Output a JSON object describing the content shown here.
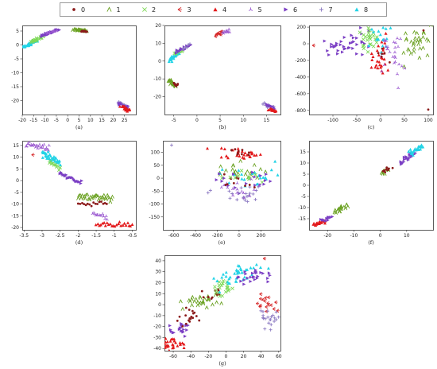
{
  "legend": {
    "entries": [
      {
        "label": "0",
        "marker": "dot",
        "color": "#8b1a1a"
      },
      {
        "label": "1",
        "marker": "caret",
        "color": "#6aa121"
      },
      {
        "label": "2",
        "marker": "x",
        "color": "#7ed957"
      },
      {
        "label": "3",
        "marker": "tri-left",
        "color": "#d62728"
      },
      {
        "label": "4",
        "marker": "triangle",
        "color": "#e31a1c"
      },
      {
        "label": "5",
        "marker": "tri-3",
        "color": "#9b59d0"
      },
      {
        "label": "6",
        "marker": "tri-right",
        "color": "#7b3fc4"
      },
      {
        "label": "7",
        "marker": "plus",
        "color": "#8e7cc3"
      },
      {
        "label": "8",
        "marker": "triangle",
        "color": "#22d3e6"
      }
    ]
  },
  "chart_data": [
    {
      "type": "scatter",
      "caption": "(a)",
      "xlim": [
        -20,
        30
      ],
      "ylim": [
        -25,
        7
      ],
      "xticks": [
        -20,
        -15,
        -10,
        -5,
        0,
        5,
        10,
        15,
        20,
        25
      ],
      "yticks": [
        5,
        0,
        -5,
        -10,
        -15,
        -20
      ],
      "clusters": [
        {
          "class": 8,
          "x0": -19.5,
          "y0": -0.8,
          "x1": -14,
          "y1": 1.5,
          "n": 40,
          "spread": 0.5
        },
        {
          "class": 2,
          "x0": -16,
          "y0": 1,
          "x1": -11,
          "y1": 3,
          "n": 22,
          "spread": 0.4
        },
        {
          "class": 6,
          "x0": -12,
          "y0": 3,
          "x1": -4,
          "y1": 5.5,
          "n": 32,
          "spread": 0.4
        },
        {
          "class": 5,
          "x0": -9,
          "y0": 4,
          "x1": -5,
          "y1": 5.2,
          "n": 12,
          "spread": 0.3
        },
        {
          "class": 1,
          "x0": 3,
          "y0": 5.5,
          "x1": 8,
          "y1": 5,
          "n": 26,
          "spread": 0.4
        },
        {
          "class": 0,
          "x0": 6,
          "y0": 5,
          "x1": 8.5,
          "y1": 4.8,
          "n": 12,
          "spread": 0.3
        },
        {
          "class": 7,
          "x0": 22,
          "y0": -20.5,
          "x1": 26,
          "y1": -22,
          "n": 12,
          "spread": 0.5
        },
        {
          "class": 6,
          "x0": 23,
          "y0": -21,
          "x1": 26.5,
          "y1": -22.5,
          "n": 14,
          "spread": 0.5
        },
        {
          "class": 4,
          "x0": 24,
          "y0": -22,
          "x1": 27,
          "y1": -23.5,
          "n": 22,
          "spread": 0.5
        }
      ]
    },
    {
      "type": "scatter",
      "caption": "(b)",
      "xlim": [
        -7,
        18
      ],
      "ylim": [
        -30,
        20
      ],
      "xticks": [
        -5,
        0,
        5,
        10,
        15
      ],
      "yticks": [
        20,
        10,
        0,
        -10,
        -20
      ],
      "clusters": [
        {
          "class": 8,
          "x0": -6,
          "y0": 0,
          "x1": -4,
          "y1": 5,
          "n": 30,
          "spread": 0.5
        },
        {
          "class": 2,
          "x0": -5,
          "y0": 4,
          "x1": -3,
          "y1": 6,
          "n": 10,
          "spread": 0.4
        },
        {
          "class": 6,
          "x0": -4.5,
          "y0": 5,
          "x1": -1.5,
          "y1": 9,
          "n": 18,
          "spread": 0.5
        },
        {
          "class": 7,
          "x0": -3,
          "y0": 7,
          "x1": -1.5,
          "y1": 9,
          "n": 6,
          "spread": 0.4
        },
        {
          "class": 1,
          "x0": -6,
          "y0": -11,
          "x1": -4.5,
          "y1": -14,
          "n": 24,
          "spread": 0.4
        },
        {
          "class": 0,
          "x0": -5,
          "y0": -12.5,
          "x1": -4.2,
          "y1": -13.5,
          "n": 8,
          "spread": 0.3
        },
        {
          "class": 3,
          "x0": 4,
          "y0": 14.5,
          "x1": 5.5,
          "y1": 16,
          "n": 10,
          "spread": 0.4
        },
        {
          "class": 5,
          "x0": 5.5,
          "y0": 16,
          "x1": 7,
          "y1": 17,
          "n": 12,
          "spread": 0.4
        },
        {
          "class": 7,
          "x0": 14,
          "y0": -24,
          "x1": 16.5,
          "y1": -26,
          "n": 12,
          "spread": 0.5
        },
        {
          "class": 6,
          "x0": 15,
          "y0": -25,
          "x1": 16.8,
          "y1": -26.5,
          "n": 10,
          "spread": 0.4
        },
        {
          "class": 4,
          "x0": 15.5,
          "y0": -27,
          "x1": 17,
          "y1": -28,
          "n": 14,
          "spread": 0.4
        }
      ]
    },
    {
      "type": "scatter",
      "caption": "(c)",
      "xlim": [
        -150,
        110
      ],
      "ylim": [
        -850,
        220
      ],
      "xticks": [
        -100,
        -50,
        0,
        50,
        100
      ],
      "yticks": [
        200,
        0,
        -200,
        -400,
        -600,
        -800
      ],
      "clusters": [
        {
          "class": 6,
          "x0": -110,
          "y0": -40,
          "x1": -30,
          "y1": 20,
          "n": 40,
          "spread": 4
        },
        {
          "class": 2,
          "x0": -40,
          "y0": 10,
          "x1": -10,
          "y1": 40,
          "n": 24,
          "spread": 4
        },
        {
          "class": 8,
          "x0": -15,
          "y0": 95,
          "x1": 20,
          "y1": 95,
          "n": 28,
          "spread": 6
        },
        {
          "class": 1,
          "x0": 55,
          "y0": -10,
          "x1": 100,
          "y1": 20,
          "n": 32,
          "spread": 5
        },
        {
          "class": 4,
          "x0": -15,
          "y0": -135,
          "x1": 15,
          "y1": -130,
          "n": 28,
          "spread": 5
        },
        {
          "class": 5,
          "x0": 5,
          "y0": -115,
          "x1": 45,
          "y1": -100,
          "n": 28,
          "spread": 5
        },
        {
          "class": 0,
          "x0": 0,
          "y0": -120,
          "x1": 10,
          "y1": -115,
          "n": 6,
          "spread": 3
        }
      ],
      "points": [
        {
          "class": 3,
          "x": -140,
          "y": -20
        },
        {
          "class": 0,
          "x": 90,
          "y": 160
        },
        {
          "class": 0,
          "x": 100,
          "y": -790
        }
      ]
    },
    {
      "type": "scatter",
      "caption": "(d)",
      "xlim": [
        -3.55,
        -0.4
      ],
      "ylim": [
        -21,
        17
      ],
      "xticks": [
        -3.5,
        -3.0,
        -2.5,
        -2.0,
        -1.5,
        -1.0,
        -0.5
      ],
      "yticks": [
        15,
        10,
        5,
        0,
        -5,
        -10,
        -15,
        -20
      ],
      "clusters": [
        {
          "class": 5,
          "x0": -3.45,
          "y0": 15,
          "x1": -2.8,
          "y1": 14,
          "n": 28,
          "spread": 0.9
        },
        {
          "class": 8,
          "x0": -3.0,
          "y0": 12,
          "x1": -2.5,
          "y1": 7,
          "n": 36,
          "spread": 1.2
        },
        {
          "class": 2,
          "x0": -2.8,
          "y0": 8,
          "x1": -2.5,
          "y1": 5,
          "n": 10,
          "spread": 0.6
        },
        {
          "class": 6,
          "x0": -2.5,
          "y0": 3,
          "x1": -1.9,
          "y1": -1,
          "n": 22,
          "spread": 0.9
        },
        {
          "class": 1,
          "x0": -2.0,
          "y0": -7,
          "x1": -1.05,
          "y1": -7,
          "n": 34,
          "spread": 1.0
        },
        {
          "class": 0,
          "x0": -2.0,
          "y0": -10,
          "x1": -1.2,
          "y1": -10,
          "n": 16,
          "spread": 0.7
        },
        {
          "class": 5,
          "x0": -1.6,
          "y0": -14,
          "x1": -1.2,
          "y1": -16,
          "n": 14,
          "spread": 0.9
        },
        {
          "class": 4,
          "x0": -1.5,
          "y0": -18.5,
          "x1": -0.5,
          "y1": -18.5,
          "n": 24,
          "spread": 0.8
        }
      ],
      "points": [
        {
          "class": 3,
          "x": -3.25,
          "y": 11
        }
      ]
    },
    {
      "type": "scatter",
      "caption": "(e)",
      "xlim": [
        -700,
        380
      ],
      "ylim": [
        -200,
        145
      ],
      "xticks": [
        -600,
        -400,
        -200,
        0,
        200
      ],
      "yticks": [
        100,
        50,
        0,
        -50,
        -100,
        -150
      ],
      "clusters": [
        {
          "class": 4,
          "x0": -10,
          "y0": 105,
          "x1": 10,
          "y1": 85,
          "n": 28,
          "spread": 5
        },
        {
          "class": 0,
          "x0": -15,
          "y0": 110,
          "x1": 0,
          "y1": 98,
          "n": 10,
          "spread": 4
        },
        {
          "class": 1,
          "x0": -70,
          "y0": 35,
          "x1": -60,
          "y1": 10,
          "n": 22,
          "spread": 6
        },
        {
          "class": 0,
          "x0": -55,
          "y0": 5,
          "x1": -50,
          "y1": -5,
          "n": 6,
          "spread": 3
        },
        {
          "class": 8,
          "x0": 55,
          "y0": 25,
          "x1": 70,
          "y1": -10,
          "n": 20,
          "spread": 6
        },
        {
          "class": 2,
          "x0": 45,
          "y0": 10,
          "x1": 60,
          "y1": -5,
          "n": 10,
          "spread": 5
        },
        {
          "class": 6,
          "x0": 25,
          "y0": 15,
          "x1": 60,
          "y1": -30,
          "n": 18,
          "spread": 6
        },
        {
          "class": 7,
          "x0": -15,
          "y0": -45,
          "x1": 10,
          "y1": -85,
          "n": 22,
          "spread": 6
        },
        {
          "class": 5,
          "x0": 0,
          "y0": -30,
          "x1": 20,
          "y1": -60,
          "n": 16,
          "spread": 6
        },
        {
          "class": 0,
          "x0": 20,
          "y0": -25,
          "x1": 30,
          "y1": -35,
          "n": 6,
          "spread": 3
        }
      ],
      "points": [
        {
          "class": 7,
          "x": -620,
          "y": 128
        },
        {
          "class": 8,
          "x": 330,
          "y": 65
        }
      ]
    },
    {
      "type": "scatter",
      "caption": "(f)",
      "xlim": [
        -27,
        20
      ],
      "ylim": [
        -20,
        20
      ],
      "xticks": [
        -20,
        -10,
        0,
        10
      ],
      "yticks": [
        15,
        10,
        5,
        0,
        -5,
        -10,
        -15
      ],
      "clusters": [
        {
          "class": 4,
          "x0": -25,
          "y0": -18,
          "x1": -21,
          "y1": -16,
          "n": 20,
          "spread": 0.6
        },
        {
          "class": 6,
          "x0": -22,
          "y0": -16,
          "x1": -18,
          "y1": -14,
          "n": 14,
          "spread": 0.6
        },
        {
          "class": 1,
          "x0": -17,
          "y0": -12,
          "x1": -13,
          "y1": -9,
          "n": 18,
          "spread": 0.6
        },
        {
          "class": 1,
          "x0": 0,
          "y0": 5,
          "x1": 3,
          "y1": 7,
          "n": 10,
          "spread": 0.5
        },
        {
          "class": 0,
          "x0": 1,
          "y0": 6,
          "x1": 4,
          "y1": 8,
          "n": 10,
          "spread": 0.5
        },
        {
          "class": 6,
          "x0": 8,
          "y0": 10,
          "x1": 13,
          "y1": 15,
          "n": 24,
          "spread": 0.7
        },
        {
          "class": 8,
          "x0": 11,
          "y0": 14,
          "x1": 16,
          "y1": 18,
          "n": 24,
          "spread": 0.7
        }
      ]
    },
    {
      "type": "scatter",
      "caption": "(g)",
      "xlim": [
        -70,
        62
      ],
      "ylim": [
        -42,
        45
      ],
      "xticks": [
        -60,
        -40,
        -20,
        0,
        20,
        40,
        60
      ],
      "yticks": [
        40,
        30,
        20,
        10,
        0,
        -10,
        -20,
        -30,
        -40
      ],
      "clusters": [
        {
          "class": 4,
          "x0": -68,
          "y0": -36,
          "x1": -58,
          "y1": -36,
          "n": 32,
          "spread": 2.5
        },
        {
          "class": 6,
          "x0": -55,
          "y0": -25,
          "x1": -45,
          "y1": -20,
          "n": 20,
          "spread": 2.5
        },
        {
          "class": 0,
          "x0": -45,
          "y0": -15,
          "x1": -35,
          "y1": -8,
          "n": 18,
          "spread": 2.5
        },
        {
          "class": 1,
          "x0": -33,
          "y0": 0,
          "x1": -20,
          "y1": 5,
          "n": 28,
          "spread": 2.5
        },
        {
          "class": 0,
          "x0": -18,
          "y0": 10,
          "x1": -8,
          "y1": 12,
          "n": 12,
          "spread": 2.0
        },
        {
          "class": 2,
          "x0": -10,
          "y0": 10,
          "x1": 2,
          "y1": 20,
          "n": 22,
          "spread": 2.5
        },
        {
          "class": 8,
          "x0": 0,
          "y0": 20,
          "x1": 28,
          "y1": 35,
          "n": 40,
          "spread": 3.0
        },
        {
          "class": 6,
          "x0": 20,
          "y0": 27,
          "x1": 38,
          "y1": 25,
          "n": 26,
          "spread": 3.0
        },
        {
          "class": 3,
          "x0": 46,
          "y0": 5,
          "x1": 52,
          "y1": -5,
          "n": 18,
          "spread": 2.5
        },
        {
          "class": 7,
          "x0": 46,
          "y0": -8,
          "x1": 52,
          "y1": -18,
          "n": 22,
          "spread": 2.5
        }
      ],
      "points": [
        {
          "class": 3,
          "x": 44,
          "y": 42
        }
      ]
    }
  ]
}
